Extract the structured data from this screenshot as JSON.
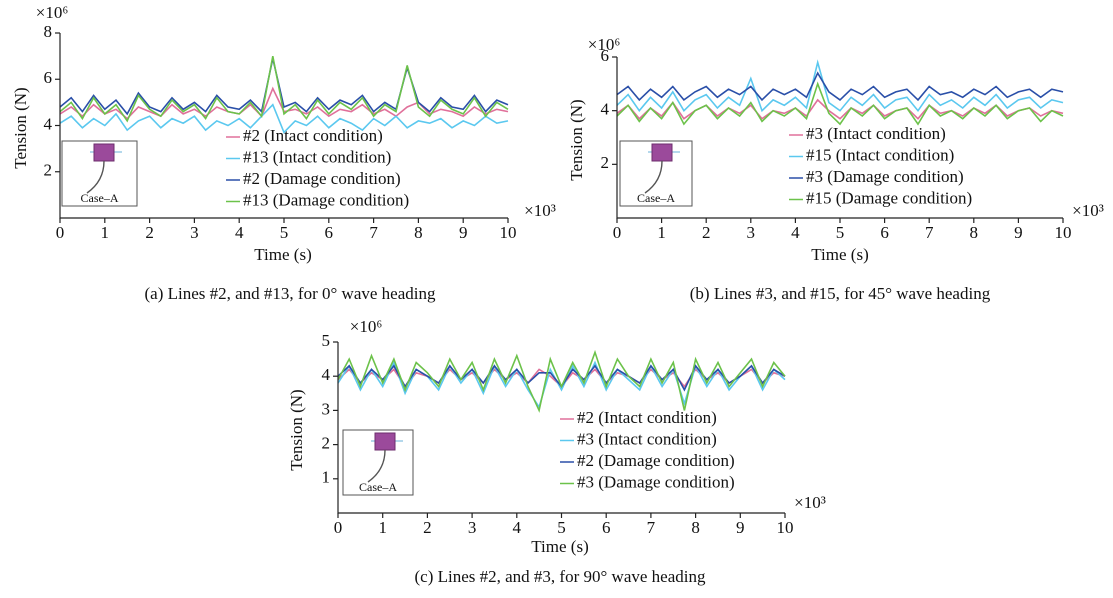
{
  "chart_data": [
    {
      "type": "line",
      "caption": "(a) Lines #2, and #13, for 0° wave heading",
      "xlabel": "Time (s)",
      "ylabel": "Tension (N)",
      "x_multiplier": "×10³",
      "y_multiplier": "×10⁶",
      "inset_label": "Case–A",
      "xlim": [
        0,
        10
      ],
      "xticks": [
        0,
        1,
        2,
        3,
        4,
        5,
        6,
        7,
        8,
        9,
        10
      ],
      "ylim": [
        0,
        8
      ],
      "yticks": [
        2,
        4,
        6,
        8
      ],
      "x": [
        0,
        0.25,
        0.5,
        0.75,
        1,
        1.25,
        1.5,
        1.75,
        2,
        2.25,
        2.5,
        2.75,
        3,
        3.25,
        3.5,
        3.75,
        4,
        4.25,
        4.5,
        4.75,
        5,
        5.25,
        5.5,
        5.75,
        6,
        6.25,
        6.5,
        6.75,
        7,
        7.25,
        7.5,
        7.75,
        8,
        8.25,
        8.5,
        8.75,
        9,
        9.25,
        9.5,
        9.75,
        10
      ],
      "series": [
        {
          "name": "#2 (Intact condition)",
          "color": "#e0709a",
          "values": [
            4.5,
            4.8,
            4.4,
            4.9,
            4.5,
            4.7,
            4.3,
            4.8,
            4.6,
            4.4,
            4.9,
            4.5,
            4.7,
            4.4,
            4.8,
            4.6,
            4.5,
            4.9,
            4.4,
            5.6,
            4.6,
            4.7,
            4.5,
            4.8,
            4.4,
            4.7,
            4.6,
            4.9,
            4.5,
            4.7,
            4.4,
            4.8,
            5.0,
            4.5,
            4.7,
            4.6,
            4.4,
            4.8,
            4.5,
            4.7,
            4.6
          ]
        },
        {
          "name": "#13 (Intact condition)",
          "color": "#5bc8ef",
          "values": [
            4.1,
            4.4,
            3.9,
            4.3,
            4.0,
            4.5,
            3.8,
            4.2,
            4.4,
            3.9,
            4.3,
            4.1,
            4.4,
            3.8,
            4.2,
            4.0,
            4.3,
            3.9,
            4.4,
            4.9,
            3.7,
            4.2,
            4.0,
            4.4,
            3.9,
            4.3,
            4.1,
            3.8,
            4.3,
            4.0,
            4.4,
            3.9,
            4.2,
            4.1,
            4.3,
            3.9,
            4.2,
            4.0,
            4.4,
            4.1,
            4.2
          ]
        },
        {
          "name": "#2 (Damage condition)",
          "color": "#2a4fa8",
          "values": [
            4.8,
            5.2,
            4.6,
            5.3,
            4.7,
            5.1,
            4.5,
            5.4,
            4.8,
            4.6,
            5.2,
            4.7,
            5.0,
            4.6,
            5.3,
            4.8,
            4.7,
            5.1,
            4.6,
            6.9,
            4.8,
            5.0,
            4.6,
            5.2,
            4.7,
            5.1,
            4.9,
            5.3,
            4.6,
            5.0,
            4.7,
            6.5,
            5.0,
            4.6,
            5.2,
            4.8,
            4.7,
            5.3,
            4.6,
            5.1,
            4.9
          ]
        },
        {
          "name": "#13 (Damage condition)",
          "color": "#6cc24a",
          "values": [
            4.6,
            5.0,
            4.3,
            5.2,
            4.5,
            4.9,
            4.2,
            5.3,
            4.7,
            4.4,
            5.1,
            4.6,
            4.9,
            4.3,
            5.2,
            4.6,
            4.5,
            5.0,
            4.4,
            7.0,
            4.5,
            4.9,
            4.3,
            5.1,
            4.5,
            5.0,
            4.7,
            5.2,
            4.4,
            4.9,
            4.6,
            6.6,
            4.8,
            4.4,
            5.1,
            4.7,
            4.5,
            5.2,
            4.4,
            5.0,
            4.7
          ]
        }
      ]
    },
    {
      "type": "line",
      "caption": "(b) Lines #3, and #15, for 45° wave heading",
      "xlabel": "Time (s)",
      "ylabel": "Tension (N)",
      "x_multiplier": "×10³",
      "y_multiplier": "×10⁶",
      "inset_label": "Case–A",
      "xlim": [
        0,
        10
      ],
      "xticks": [
        0,
        1,
        2,
        3,
        4,
        5,
        6,
        7,
        8,
        9,
        10
      ],
      "ylim": [
        0,
        6
      ],
      "yticks": [
        2,
        4,
        6
      ],
      "x": [
        0,
        0.25,
        0.5,
        0.75,
        1,
        1.25,
        1.5,
        1.75,
        2,
        2.25,
        2.5,
        2.75,
        3,
        3.25,
        3.5,
        3.75,
        4,
        4.25,
        4.5,
        4.75,
        5,
        5.25,
        5.5,
        5.75,
        6,
        6.25,
        6.5,
        6.75,
        7,
        7.25,
        7.5,
        7.75,
        8,
        8.25,
        8.5,
        8.75,
        9,
        9.25,
        9.5,
        9.75,
        10
      ],
      "series": [
        {
          "name": "#3 (Intact condition)",
          "color": "#e0709a",
          "values": [
            3.9,
            4.2,
            3.7,
            4.1,
            3.8,
            4.3,
            3.7,
            4.0,
            4.2,
            3.8,
            4.1,
            3.9,
            4.2,
            3.7,
            4.0,
            3.9,
            4.1,
            3.8,
            4.4,
            4.0,
            3.7,
            4.1,
            3.9,
            4.2,
            3.8,
            4.0,
            4.1,
            3.7,
            4.2,
            3.9,
            4.0,
            3.8,
            4.1,
            3.9,
            4.2,
            3.8,
            4.0,
            4.1,
            3.8,
            4.0,
            3.9
          ]
        },
        {
          "name": "#15 (Intact condition)",
          "color": "#5bc8ef",
          "values": [
            4.2,
            4.6,
            4.0,
            4.5,
            4.1,
            4.7,
            4.0,
            4.4,
            4.6,
            4.1,
            4.5,
            4.2,
            5.2,
            4.0,
            4.4,
            4.2,
            4.5,
            4.1,
            5.8,
            4.3,
            4.0,
            4.5,
            4.2,
            4.6,
            4.1,
            4.4,
            4.5,
            4.0,
            4.6,
            4.2,
            4.4,
            4.1,
            4.5,
            4.2,
            4.6,
            4.1,
            4.4,
            4.5,
            4.1,
            4.4,
            4.3
          ]
        },
        {
          "name": "#3 (Damage condition)",
          "color": "#2a4fa8",
          "values": [
            4.6,
            4.9,
            4.4,
            4.8,
            4.5,
            4.9,
            4.4,
            4.7,
            4.9,
            4.5,
            4.8,
            4.6,
            4.9,
            4.4,
            4.8,
            4.6,
            4.8,
            4.5,
            5.4,
            4.7,
            4.4,
            4.8,
            4.6,
            4.9,
            4.5,
            4.7,
            4.8,
            4.4,
            4.9,
            4.6,
            4.7,
            4.5,
            4.8,
            4.6,
            4.9,
            4.5,
            4.7,
            4.8,
            4.5,
            4.8,
            4.7
          ]
        },
        {
          "name": "#15 (Damage condition)",
          "color": "#6cc24a",
          "values": [
            3.8,
            4.2,
            3.6,
            4.1,
            3.7,
            4.3,
            3.5,
            4.0,
            4.2,
            3.7,
            4.1,
            3.8,
            4.3,
            3.6,
            4.0,
            3.8,
            4.1,
            3.7,
            5.0,
            3.9,
            3.5,
            4.1,
            3.8,
            4.2,
            3.7,
            4.0,
            4.1,
            3.5,
            4.2,
            3.8,
            4.0,
            3.7,
            4.1,
            3.8,
            4.2,
            3.7,
            4.0,
            4.1,
            3.6,
            4.0,
            3.8
          ]
        }
      ]
    },
    {
      "type": "line",
      "caption": "(c) Lines #2, and #3, for 90° wave heading",
      "xlabel": "Time (s)",
      "ylabel": "Tension (N)",
      "x_multiplier": "×10³",
      "y_multiplier": "×10⁶",
      "inset_label": "Case–A",
      "xlim": [
        0,
        10
      ],
      "xticks": [
        0,
        1,
        2,
        3,
        4,
        5,
        6,
        7,
        8,
        9,
        10
      ],
      "ylim": [
        0,
        5
      ],
      "yticks": [
        1,
        2,
        3,
        4,
        5
      ],
      "x": [
        0,
        0.25,
        0.5,
        0.75,
        1,
        1.25,
        1.5,
        1.75,
        2,
        2.25,
        2.5,
        2.75,
        3,
        3.25,
        3.5,
        3.75,
        4,
        4.25,
        4.5,
        4.75,
        5,
        5.25,
        5.5,
        5.75,
        6,
        6.25,
        6.5,
        6.75,
        7,
        7.25,
        7.5,
        7.75,
        8,
        8.25,
        8.5,
        8.75,
        9,
        9.25,
        9.5,
        9.75,
        10
      ],
      "series": [
        {
          "name": "#2 (Intact condition)",
          "color": "#e0709a",
          "values": [
            3.9,
            4.2,
            3.8,
            4.1,
            3.9,
            4.2,
            3.7,
            4.1,
            4.0,
            3.8,
            4.2,
            3.9,
            4.1,
            3.8,
            4.2,
            3.9,
            4.1,
            3.8,
            4.2,
            4.0,
            3.7,
            4.1,
            3.9,
            4.2,
            3.8,
            4.1,
            4.0,
            3.8,
            4.2,
            3.9,
            4.1,
            3.7,
            4.2,
            3.9,
            4.1,
            3.8,
            4.0,
            4.2,
            3.8,
            4.1,
            4.0
          ]
        },
        {
          "name": "#3 (Intact condition)",
          "color": "#5bc8ef",
          "values": [
            3.8,
            4.3,
            3.6,
            4.2,
            3.7,
            4.4,
            3.5,
            4.2,
            4.0,
            3.6,
            4.3,
            3.8,
            4.2,
            3.5,
            4.3,
            3.7,
            4.2,
            3.6,
            3.1,
            4.2,
            3.6,
            4.3,
            3.7,
            4.4,
            3.6,
            4.2,
            3.9,
            3.6,
            4.3,
            3.7,
            4.2,
            3.2,
            4.3,
            3.7,
            4.2,
            3.6,
            4.0,
            4.3,
            3.6,
            4.2,
            3.9
          ]
        },
        {
          "name": "#2 (Damage condition)",
          "color": "#2a4fa8",
          "values": [
            4.0,
            4.3,
            3.8,
            4.2,
            3.9,
            4.3,
            3.7,
            4.2,
            4.0,
            3.8,
            4.3,
            3.9,
            4.2,
            3.8,
            4.3,
            3.9,
            4.2,
            3.8,
            4.1,
            4.1,
            3.7,
            4.2,
            3.9,
            4.3,
            3.8,
            4.2,
            4.0,
            3.8,
            4.3,
            3.9,
            4.2,
            3.6,
            4.3,
            3.9,
            4.2,
            3.8,
            4.0,
            4.3,
            3.8,
            4.2,
            4.0
          ]
        },
        {
          "name": "#3 (Damage condition)",
          "color": "#6cc24a",
          "values": [
            3.9,
            4.5,
            3.7,
            4.6,
            3.8,
            4.5,
            3.6,
            4.4,
            4.1,
            3.7,
            4.5,
            3.9,
            4.4,
            3.6,
            4.5,
            3.8,
            4.6,
            3.7,
            3.0,
            4.5,
            3.7,
            4.4,
            3.8,
            4.7,
            3.7,
            4.5,
            4.0,
            3.7,
            4.5,
            3.8,
            4.4,
            3.0,
            4.5,
            3.8,
            4.4,
            3.7,
            4.1,
            4.5,
            3.7,
            4.4,
            4.0
          ]
        }
      ]
    }
  ]
}
